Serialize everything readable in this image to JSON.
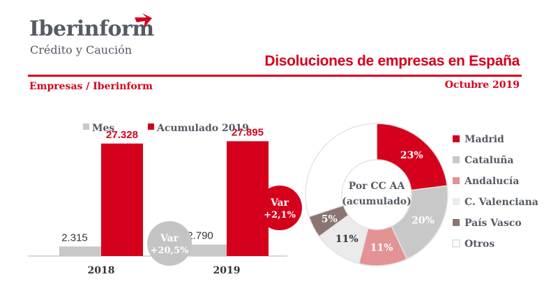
{
  "header": {
    "logo_name": "Iberinform",
    "logo_tagline": "Crédito y Caución",
    "title": "Disoluciones de empresas en España",
    "source": "Empresas / Iberinform",
    "period": "Octubre 2019"
  },
  "colors": {
    "red": "#d5001c",
    "gray": "#c8c8c8",
    "dark_gray": "#555a63",
    "badge_gray": "#c4c4c4"
  },
  "chart_data": [
    {
      "type": "bar",
      "categories": [
        "2018",
        "2019"
      ],
      "series": [
        {
          "name": "Mes",
          "values": [
            2315,
            2790
          ],
          "labels": [
            "2.315",
            "2.790"
          ],
          "color": "#c8c8c8"
        },
        {
          "name": "Acumulado 2019",
          "values": [
            27328,
            27895
          ],
          "labels": [
            "27.328",
            "27.895"
          ],
          "color": "#d5001c"
        }
      ],
      "ylim": [
        0,
        30000
      ],
      "annotations": [
        {
          "line1": "Var",
          "line2": "+20,5%",
          "series": "Mes"
        },
        {
          "line1": "Var",
          "line2": "+2,1%",
          "series": "Acumulado 2019"
        }
      ],
      "legend_position": "top"
    },
    {
      "type": "pie",
      "donut": true,
      "center_label": [
        "Por CC AA",
        "(acumulado)"
      ],
      "slices": [
        {
          "name": "Madrid",
          "value": 23,
          "label": "23%",
          "color": "#d5001c",
          "label_color": "#ffffff"
        },
        {
          "name": "Cataluña",
          "value": 20,
          "label": "20%",
          "color": "#c8c8c8",
          "label_color": "#ffffff"
        },
        {
          "name": "Andalucía",
          "value": 11,
          "label": "11%",
          "color": "#e39394",
          "label_color": "#ffffff"
        },
        {
          "name": "C. Valenciana",
          "value": 11,
          "label": "11%",
          "color": "#ebebeb",
          "label_color": "#333333"
        },
        {
          "name": "País Vasco",
          "value": 5,
          "label": "5%",
          "color": "#8a7570",
          "label_color": "#ffffff"
        },
        {
          "name": "Otros",
          "value": 30,
          "label": "",
          "color": "#ffffff",
          "label_color": "#333333"
        }
      ],
      "legend_position": "right"
    }
  ]
}
